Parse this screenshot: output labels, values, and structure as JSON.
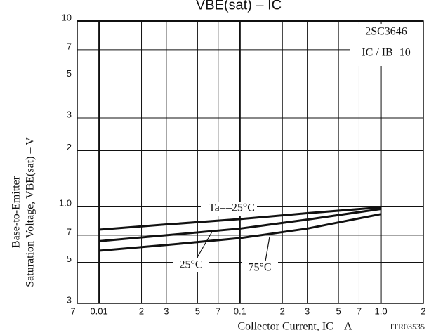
{
  "chart_data": {
    "type": "line",
    "title": "VBE(sat) – IC",
    "x_label": "Collector Current, IC – A",
    "y_label_lines": [
      "Base-to-Emitter",
      "Saturation Voltage, VBE(sat) – V"
    ],
    "annotations": [
      "2SC3646",
      "IC / IB=10",
      "ITR03535"
    ],
    "log_x": true,
    "log_y": true,
    "grid": true,
    "xlim": [
      0.007,
      2
    ],
    "ylim": [
      0.3,
      10
    ],
    "xticks": [
      {
        "value": 0.007,
        "label": "7"
      },
      0.01,
      {
        "value": 0.02,
        "label": "2"
      },
      {
        "value": 0.03,
        "label": "3"
      },
      {
        "value": 0.05,
        "label": "5"
      },
      {
        "value": 0.07,
        "label": "7"
      },
      0.1,
      {
        "value": 0.2,
        "label": "2"
      },
      {
        "value": 0.3,
        "label": "3"
      },
      {
        "value": 0.5,
        "label": "5"
      },
      {
        "value": 0.7,
        "label": "7"
      },
      {
        "value": 1,
        "label": "1.0"
      },
      2
    ],
    "yticks": [
      {
        "value": 0.3,
        "label": "3"
      },
      {
        "value": 0.5,
        "label": "5"
      },
      {
        "value": 0.7,
        "label": "7"
      },
      {
        "value": 1,
        "label": "1.0"
      },
      2,
      3,
      5,
      7,
      10
    ],
    "x": [
      0.01,
      0.03,
      0.1,
      0.3,
      1
    ],
    "series": [
      {
        "name": "Ta=–25°C",
        "color": "#111111",
        "values": [
          0.75,
          0.8,
          0.855,
          0.92,
          0.99
        ]
      },
      {
        "name": "25°C",
        "color": "#111111",
        "values": [
          0.65,
          0.7,
          0.76,
          0.85,
          0.97
        ]
      },
      {
        "name": "75°C",
        "color": "#111111",
        "values": [
          0.577,
          0.62,
          0.675,
          0.76,
          0.91
        ]
      }
    ]
  }
}
